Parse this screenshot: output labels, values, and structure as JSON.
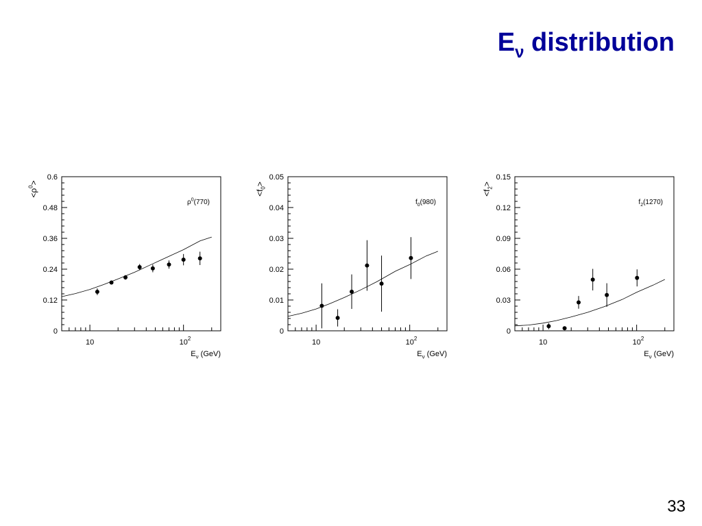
{
  "slide": {
    "title_main": "E",
    "title_sub": "ν",
    "title_rest": " distribution",
    "page_number": "33"
  },
  "chart_data": [
    {
      "type": "scatter",
      "xscale": "log",
      "xlim": [
        5,
        250
      ],
      "ylim": [
        0,
        0.6
      ],
      "yticks": [
        "0",
        "0.12",
        "0.24",
        "0.36",
        "0.48",
        "0.6"
      ],
      "ylabel": "<ρ⁰>",
      "xlabel": "E_ν (GeV)",
      "annotation": "ρ⁰(770)",
      "series": [
        {
          "kind": "points",
          "x": [
            12,
            17,
            24,
            34,
            47,
            70,
            100,
            150
          ],
          "y": [
            0.152,
            0.188,
            0.208,
            0.248,
            0.243,
            0.258,
            0.277,
            0.282
          ],
          "yerr": [
            0.013,
            0.008,
            0.009,
            0.012,
            0.015,
            0.016,
            0.022,
            0.026
          ]
        },
        {
          "kind": "curve",
          "x": [
            5,
            7,
            10,
            14,
            20,
            30,
            45,
            70,
            100,
            150,
            200
          ],
          "y": [
            0.133,
            0.145,
            0.161,
            0.18,
            0.202,
            0.228,
            0.258,
            0.29,
            0.316,
            0.35,
            0.365
          ]
        }
      ]
    },
    {
      "type": "scatter",
      "xscale": "log",
      "xlim": [
        5,
        250
      ],
      "ylim": [
        0,
        0.05
      ],
      "yticks": [
        "0",
        "0.01",
        "0.02",
        "0.03",
        "0.04",
        "0.05"
      ],
      "ylabel": "<f₀>",
      "xlabel": "E_ν (GeV)",
      "annotation": "f₀(980)",
      "series": [
        {
          "kind": "points",
          "x": [
            11.5,
            17,
            24,
            35,
            50,
            103
          ],
          "y": [
            0.0081,
            0.0042,
            0.0127,
            0.0212,
            0.0153,
            0.0236
          ],
          "yerr": [
            0.0073,
            0.0028,
            0.0056,
            0.0082,
            0.0091,
            0.0068
          ]
        },
        {
          "kind": "curve",
          "x": [
            5,
            7,
            10,
            14,
            20,
            30,
            45,
            70,
            100,
            150,
            200
          ],
          "y": [
            0.0047,
            0.0057,
            0.0071,
            0.0088,
            0.0108,
            0.0133,
            0.016,
            0.0193,
            0.0215,
            0.0243,
            0.0258
          ]
        }
      ]
    },
    {
      "type": "scatter",
      "xscale": "log",
      "xlim": [
        5,
        250
      ],
      "ylim": [
        0,
        0.15
      ],
      "yticks": [
        "0",
        "0.03",
        "0.06",
        "0.09",
        "0.12",
        "0.15"
      ],
      "ylabel": "<f₂>",
      "xlabel": "E_ν (GeV)",
      "annotation": "f₂(1270)",
      "series": [
        {
          "kind": "points",
          "x": [
            11.5,
            17,
            24,
            34,
            48,
            101
          ],
          "y": [
            0.0045,
            0.0025,
            0.0277,
            0.0498,
            0.0348,
            0.0515
          ],
          "yerr": [
            0.003,
            0.0015,
            0.0062,
            0.0105,
            0.0115,
            0.0083
          ]
        },
        {
          "kind": "curve",
          "x": [
            5,
            7,
            10,
            14,
            20,
            30,
            45,
            70,
            100,
            150,
            200
          ],
          "y": [
            0.0048,
            0.0056,
            0.0075,
            0.01,
            0.0135,
            0.018,
            0.0235,
            0.0305,
            0.0375,
            0.0445,
            0.05
          ]
        }
      ]
    }
  ]
}
